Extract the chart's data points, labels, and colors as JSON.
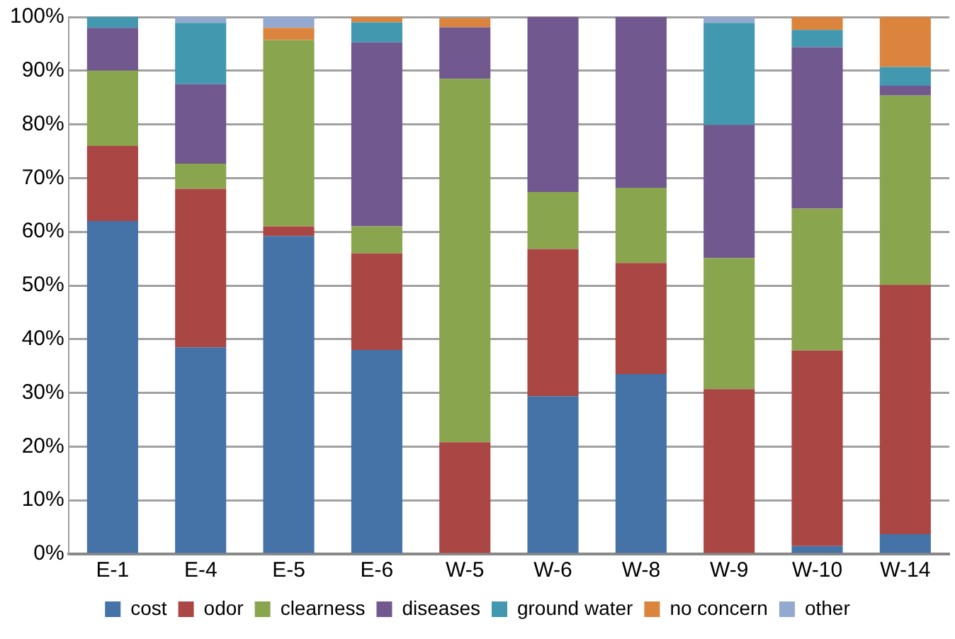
{
  "chart_data": {
    "type": "bar",
    "stacked": true,
    "categories": [
      "E-1",
      "E-4",
      "E-5",
      "E-6",
      "W-5",
      "W-6",
      "W-8",
      "W-9",
      "W-10",
      "W-14"
    ],
    "series": [
      {
        "name": "cost",
        "color": "#4572a7",
        "values": [
          62,
          38.5,
          59.2,
          38,
          0,
          29.4,
          33.5,
          0,
          1.5,
          3.7
        ]
      },
      {
        "name": "odor",
        "color": "#aa4643",
        "values": [
          14,
          29.5,
          1.8,
          18,
          20.8,
          27.4,
          20.7,
          30.7,
          36.4,
          46.4
        ]
      },
      {
        "name": "clearness",
        "color": "#89a54e",
        "values": [
          14,
          4.7,
          34.7,
          5,
          67.7,
          10.6,
          14,
          24.4,
          26.4,
          35.3
        ]
      },
      {
        "name": "diseases",
        "color": "#71588f",
        "values": [
          8,
          14.8,
          0,
          34.3,
          9.6,
          32.6,
          31.8,
          24.8,
          30.1,
          1.8
        ]
      },
      {
        "name": "ground water",
        "color": "#4198af",
        "values": [
          2,
          11.4,
          0,
          3.7,
          0,
          0,
          0,
          19,
          3.2,
          3.5
        ]
      },
      {
        "name": "no concern",
        "color": "#db843d",
        "values": [
          0,
          0,
          2.3,
          1,
          1.7,
          0,
          0,
          0,
          2.4,
          9.3
        ]
      },
      {
        "name": "other",
        "color": "#93a9cf",
        "values": [
          0,
          1.1,
          2,
          0,
          0,
          0,
          0,
          1.1,
          0,
          0
        ]
      }
    ],
    "ylim": [
      0,
      100
    ],
    "yticks": [
      {
        "value": 0,
        "label": "0%"
      },
      {
        "value": 10,
        "label": "10%"
      },
      {
        "value": 20,
        "label": "20%"
      },
      {
        "value": 30,
        "label": "30%"
      },
      {
        "value": 40,
        "label": "40%"
      },
      {
        "value": 50,
        "label": "50%"
      },
      {
        "value": 60,
        "label": "60%"
      },
      {
        "value": 70,
        "label": "70%"
      },
      {
        "value": 80,
        "label": "80%"
      },
      {
        "value": 90,
        "label": "90%"
      },
      {
        "value": 100,
        "label": "100%"
      }
    ],
    "grid": "y",
    "legend": "bottom"
  }
}
